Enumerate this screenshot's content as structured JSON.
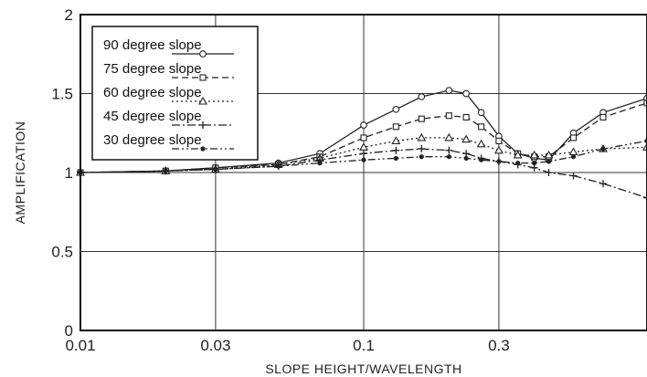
{
  "chart_data": {
    "type": "line",
    "title": "",
    "xlabel": "SLOPE HEIGHT/WAVELENGTH",
    "ylabel": "AMPLIFICATION",
    "xscale": "log",
    "xlim": [
      0.01,
      1.0
    ],
    "ylim": [
      0,
      2
    ],
    "x_ticks": [
      "0.01",
      "0.03",
      "0.1",
      "0.3"
    ],
    "y_ticks": [
      "0",
      "0.5",
      "1",
      "1.5",
      "2"
    ],
    "grid": true,
    "legend_position": "top-left",
    "series": [
      {
        "name": "90 degree slope",
        "marker": "circle",
        "dash": "solid",
        "x": [
          0.01,
          0.02,
          0.03,
          0.05,
          0.07,
          0.1,
          0.13,
          0.16,
          0.2,
          0.23,
          0.26,
          0.3,
          0.35,
          0.4,
          0.45,
          0.55,
          0.7,
          1.0
        ],
        "y": [
          1.0,
          1.01,
          1.03,
          1.06,
          1.12,
          1.3,
          1.4,
          1.48,
          1.52,
          1.5,
          1.38,
          1.23,
          1.12,
          1.09,
          1.08,
          1.25,
          1.38,
          1.47
        ]
      },
      {
        "name": "75 degree slope",
        "marker": "square",
        "dash": "dashed",
        "x": [
          0.01,
          0.02,
          0.03,
          0.05,
          0.07,
          0.1,
          0.13,
          0.16,
          0.2,
          0.23,
          0.26,
          0.3,
          0.35,
          0.4,
          0.45,
          0.55,
          0.7,
          1.0
        ],
        "y": [
          1.0,
          1.01,
          1.03,
          1.05,
          1.1,
          1.22,
          1.29,
          1.34,
          1.36,
          1.35,
          1.29,
          1.2,
          1.12,
          1.1,
          1.1,
          1.22,
          1.35,
          1.44
        ]
      },
      {
        "name": "60 degree slope",
        "marker": "triangle",
        "dash": "dotted",
        "x": [
          0.01,
          0.02,
          0.03,
          0.05,
          0.07,
          0.1,
          0.13,
          0.16,
          0.2,
          0.23,
          0.26,
          0.3,
          0.35,
          0.4,
          0.45,
          0.55,
          0.7,
          1.0
        ],
        "y": [
          1.0,
          1.01,
          1.02,
          1.05,
          1.09,
          1.16,
          1.2,
          1.22,
          1.22,
          1.21,
          1.18,
          1.14,
          1.11,
          1.11,
          1.11,
          1.13,
          1.15,
          1.16
        ]
      },
      {
        "name": "45 degree slope",
        "marker": "plus",
        "dash": "dashdot",
        "x": [
          0.01,
          0.02,
          0.03,
          0.05,
          0.07,
          0.1,
          0.13,
          0.16,
          0.2,
          0.23,
          0.26,
          0.3,
          0.35,
          0.4,
          0.45,
          0.55,
          0.7,
          1.0
        ],
        "y": [
          1.0,
          1.01,
          1.02,
          1.04,
          1.08,
          1.12,
          1.14,
          1.15,
          1.14,
          1.12,
          1.09,
          1.07,
          1.05,
          1.03,
          1.0,
          0.98,
          0.93,
          0.84
        ]
      },
      {
        "name": "30 degree slope",
        "marker": "dot",
        "dash": "dashdotdot",
        "x": [
          0.01,
          0.02,
          0.03,
          0.05,
          0.07,
          0.1,
          0.13,
          0.16,
          0.2,
          0.23,
          0.26,
          0.3,
          0.35,
          0.4,
          0.45,
          0.55,
          0.7,
          1.0
        ],
        "y": [
          1.0,
          1.01,
          1.02,
          1.04,
          1.06,
          1.08,
          1.09,
          1.1,
          1.1,
          1.09,
          1.08,
          1.07,
          1.06,
          1.06,
          1.07,
          1.1,
          1.15,
          1.2
        ]
      }
    ]
  }
}
